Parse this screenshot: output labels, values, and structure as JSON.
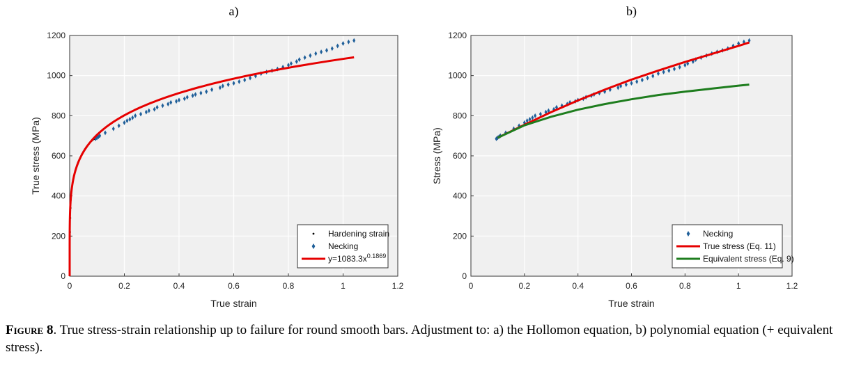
{
  "caption": {
    "label": "Figure 8",
    "text": ". True stress-strain relationship up to failure for round smooth bars. Adjustment to: a) the Hollomon equation, b) polynomial equation (+ equivalent stress)."
  },
  "colors": {
    "plot_bg": "#f0f0f0",
    "grid": "#ffffff",
    "red": "#e60000",
    "blue": "#1f5f99",
    "green": "#1e7d1e",
    "black": "#000000"
  },
  "chart_data": [
    {
      "type": "scatter",
      "panel_label": "a)",
      "xlabel": "True strain",
      "ylabel": "True stress (MPa)",
      "xlim": [
        0,
        1.2
      ],
      "ylim": [
        0,
        1200
      ],
      "xticks": [
        "0",
        "0.2",
        "0.4",
        "0.6",
        "0.8",
        "1",
        "1.2"
      ],
      "yticks": [
        "0",
        "200",
        "400",
        "600",
        "800",
        "1000",
        "1200"
      ],
      "grid": true,
      "legend_position": "bottom-right",
      "series": [
        {
          "name": "Hardening strain",
          "kind": "points",
          "marker": "dot",
          "color": "#000000",
          "points": [
            [
              0,
              60
            ],
            [
              0.001,
              150
            ],
            [
              0.002,
              220
            ],
            [
              0.003,
              290
            ],
            [
              0.004,
              340
            ],
            [
              0.005,
              380
            ],
            [
              0.006,
              410
            ],
            [
              0.008,
              440
            ],
            [
              0.01,
              465
            ],
            [
              0.012,
              480
            ],
            [
              0.015,
              500
            ],
            [
              0.02,
              525
            ],
            [
              0.025,
              545
            ],
            [
              0.03,
              565
            ],
            [
              0.035,
              580
            ],
            [
              0.04,
              595
            ],
            [
              0.045,
              610
            ],
            [
              0.05,
              622
            ],
            [
              0.055,
              633
            ],
            [
              0.06,
              643
            ],
            [
              0.065,
              652
            ],
            [
              0.07,
              660
            ],
            [
              0.075,
              667
            ],
            [
              0.08,
              673
            ],
            [
              0.085,
              678
            ],
            [
              0.09,
              683
            ],
            [
              0.095,
              687
            ],
            [
              0.1,
              690
            ]
          ]
        },
        {
          "name": "Necking",
          "kind": "points",
          "marker": "diamond",
          "color": "#1f5f99",
          "points": [
            [
              0.095,
              685
            ],
            [
              0.1,
              690
            ],
            [
              0.105,
              695
            ],
            [
              0.11,
              700
            ],
            [
              0.13,
              715
            ],
            [
              0.16,
              735
            ],
            [
              0.18,
              750
            ],
            [
              0.2,
              765
            ],
            [
              0.21,
              775
            ],
            [
              0.22,
              782
            ],
            [
              0.23,
              790
            ],
            [
              0.24,
              800
            ],
            [
              0.26,
              808
            ],
            [
              0.28,
              818
            ],
            [
              0.29,
              825
            ],
            [
              0.31,
              832
            ],
            [
              0.32,
              842
            ],
            [
              0.34,
              850
            ],
            [
              0.36,
              858
            ],
            [
              0.37,
              866
            ],
            [
              0.39,
              872
            ],
            [
              0.4,
              878
            ],
            [
              0.42,
              885
            ],
            [
              0.43,
              892
            ],
            [
              0.45,
              900
            ],
            [
              0.46,
              906
            ],
            [
              0.48,
              913
            ],
            [
              0.5,
              920
            ],
            [
              0.52,
              930
            ],
            [
              0.55,
              940
            ],
            [
              0.56,
              948
            ],
            [
              0.58,
              955
            ],
            [
              0.6,
              962
            ],
            [
              0.62,
              970
            ],
            [
              0.64,
              978
            ],
            [
              0.66,
              988
            ],
            [
              0.68,
              998
            ],
            [
              0.7,
              1010
            ],
            [
              0.72,
              1018
            ],
            [
              0.74,
              1025
            ],
            [
              0.76,
              1033
            ],
            [
              0.78,
              1042
            ],
            [
              0.8,
              1052
            ],
            [
              0.81,
              1060
            ],
            [
              0.83,
              1070
            ],
            [
              0.84,
              1080
            ],
            [
              0.86,
              1090
            ],
            [
              0.88,
              1100
            ],
            [
              0.9,
              1110
            ],
            [
              0.92,
              1118
            ],
            [
              0.94,
              1126
            ],
            [
              0.96,
              1135
            ],
            [
              0.98,
              1148
            ],
            [
              1.0,
              1160
            ],
            [
              1.02,
              1168
            ],
            [
              1.04,
              1175
            ]
          ]
        },
        {
          "name": "y=1083.3x",
          "name_superscript": "0.1869",
          "kind": "function",
          "coefficient": 1083.3,
          "exponent": 0.1869,
          "x_range": [
            0,
            1.04
          ],
          "color": "#e60000"
        }
      ]
    },
    {
      "type": "scatter",
      "panel_label": "b)",
      "xlabel": "True strain",
      "ylabel": "Stress (MPa)",
      "xlim": [
        0,
        1.2
      ],
      "ylim": [
        0,
        1200
      ],
      "xticks": [
        "0",
        "0.2",
        "0.4",
        "0.6",
        "0.8",
        "1",
        "1.2"
      ],
      "yticks": [
        "0",
        "200",
        "400",
        "600",
        "800",
        "1000",
        "1200"
      ],
      "grid": true,
      "legend_position": "bottom-right",
      "series": [
        {
          "name": "Necking",
          "kind": "points",
          "marker": "diamond",
          "color": "#1f5f99",
          "points": [
            [
              0.095,
              685
            ],
            [
              0.1,
              690
            ],
            [
              0.105,
              695
            ],
            [
              0.11,
              700
            ],
            [
              0.13,
              715
            ],
            [
              0.16,
              735
            ],
            [
              0.18,
              750
            ],
            [
              0.2,
              765
            ],
            [
              0.21,
              775
            ],
            [
              0.22,
              782
            ],
            [
              0.23,
              790
            ],
            [
              0.24,
              800
            ],
            [
              0.26,
              808
            ],
            [
              0.28,
              818
            ],
            [
              0.29,
              825
            ],
            [
              0.31,
              832
            ],
            [
              0.32,
              842
            ],
            [
              0.34,
              850
            ],
            [
              0.36,
              858
            ],
            [
              0.37,
              866
            ],
            [
              0.39,
              872
            ],
            [
              0.4,
              878
            ],
            [
              0.42,
              885
            ],
            [
              0.43,
              892
            ],
            [
              0.45,
              900
            ],
            [
              0.46,
              906
            ],
            [
              0.48,
              913
            ],
            [
              0.5,
              920
            ],
            [
              0.52,
              930
            ],
            [
              0.55,
              940
            ],
            [
              0.56,
              948
            ],
            [
              0.58,
              955
            ],
            [
              0.6,
              962
            ],
            [
              0.62,
              970
            ],
            [
              0.64,
              978
            ],
            [
              0.66,
              988
            ],
            [
              0.68,
              998
            ],
            [
              0.7,
              1010
            ],
            [
              0.72,
              1018
            ],
            [
              0.74,
              1025
            ],
            [
              0.76,
              1033
            ],
            [
              0.78,
              1042
            ],
            [
              0.8,
              1052
            ],
            [
              0.81,
              1060
            ],
            [
              0.83,
              1070
            ],
            [
              0.84,
              1080
            ],
            [
              0.86,
              1090
            ],
            [
              0.88,
              1100
            ],
            [
              0.9,
              1110
            ],
            [
              0.92,
              1118
            ],
            [
              0.94,
              1126
            ],
            [
              0.96,
              1135
            ],
            [
              0.98,
              1148
            ],
            [
              1.0,
              1160
            ],
            [
              1.02,
              1168
            ],
            [
              1.04,
              1175
            ]
          ]
        },
        {
          "name": "True stress (Eq. 11)",
          "kind": "line",
          "color": "#e60000",
          "points": [
            [
              0.1,
              690
            ],
            [
              0.2,
              755
            ],
            [
              0.3,
              818
            ],
            [
              0.4,
              876
            ],
            [
              0.5,
              930
            ],
            [
              0.6,
              980
            ],
            [
              0.7,
              1025
            ],
            [
              0.8,
              1068
            ],
            [
              0.9,
              1108
            ],
            [
              1.0,
              1148
            ],
            [
              1.04,
              1165
            ]
          ]
        },
        {
          "name": "Equivalent stress (Eq. 9)",
          "kind": "line",
          "color": "#1e7d1e",
          "points": [
            [
              0.1,
              690
            ],
            [
              0.2,
              752
            ],
            [
              0.3,
              795
            ],
            [
              0.4,
              830
            ],
            [
              0.5,
              858
            ],
            [
              0.6,
              882
            ],
            [
              0.7,
              903
            ],
            [
              0.8,
              920
            ],
            [
              0.9,
              935
            ],
            [
              1.0,
              950
            ],
            [
              1.04,
              955
            ]
          ]
        }
      ]
    }
  ]
}
